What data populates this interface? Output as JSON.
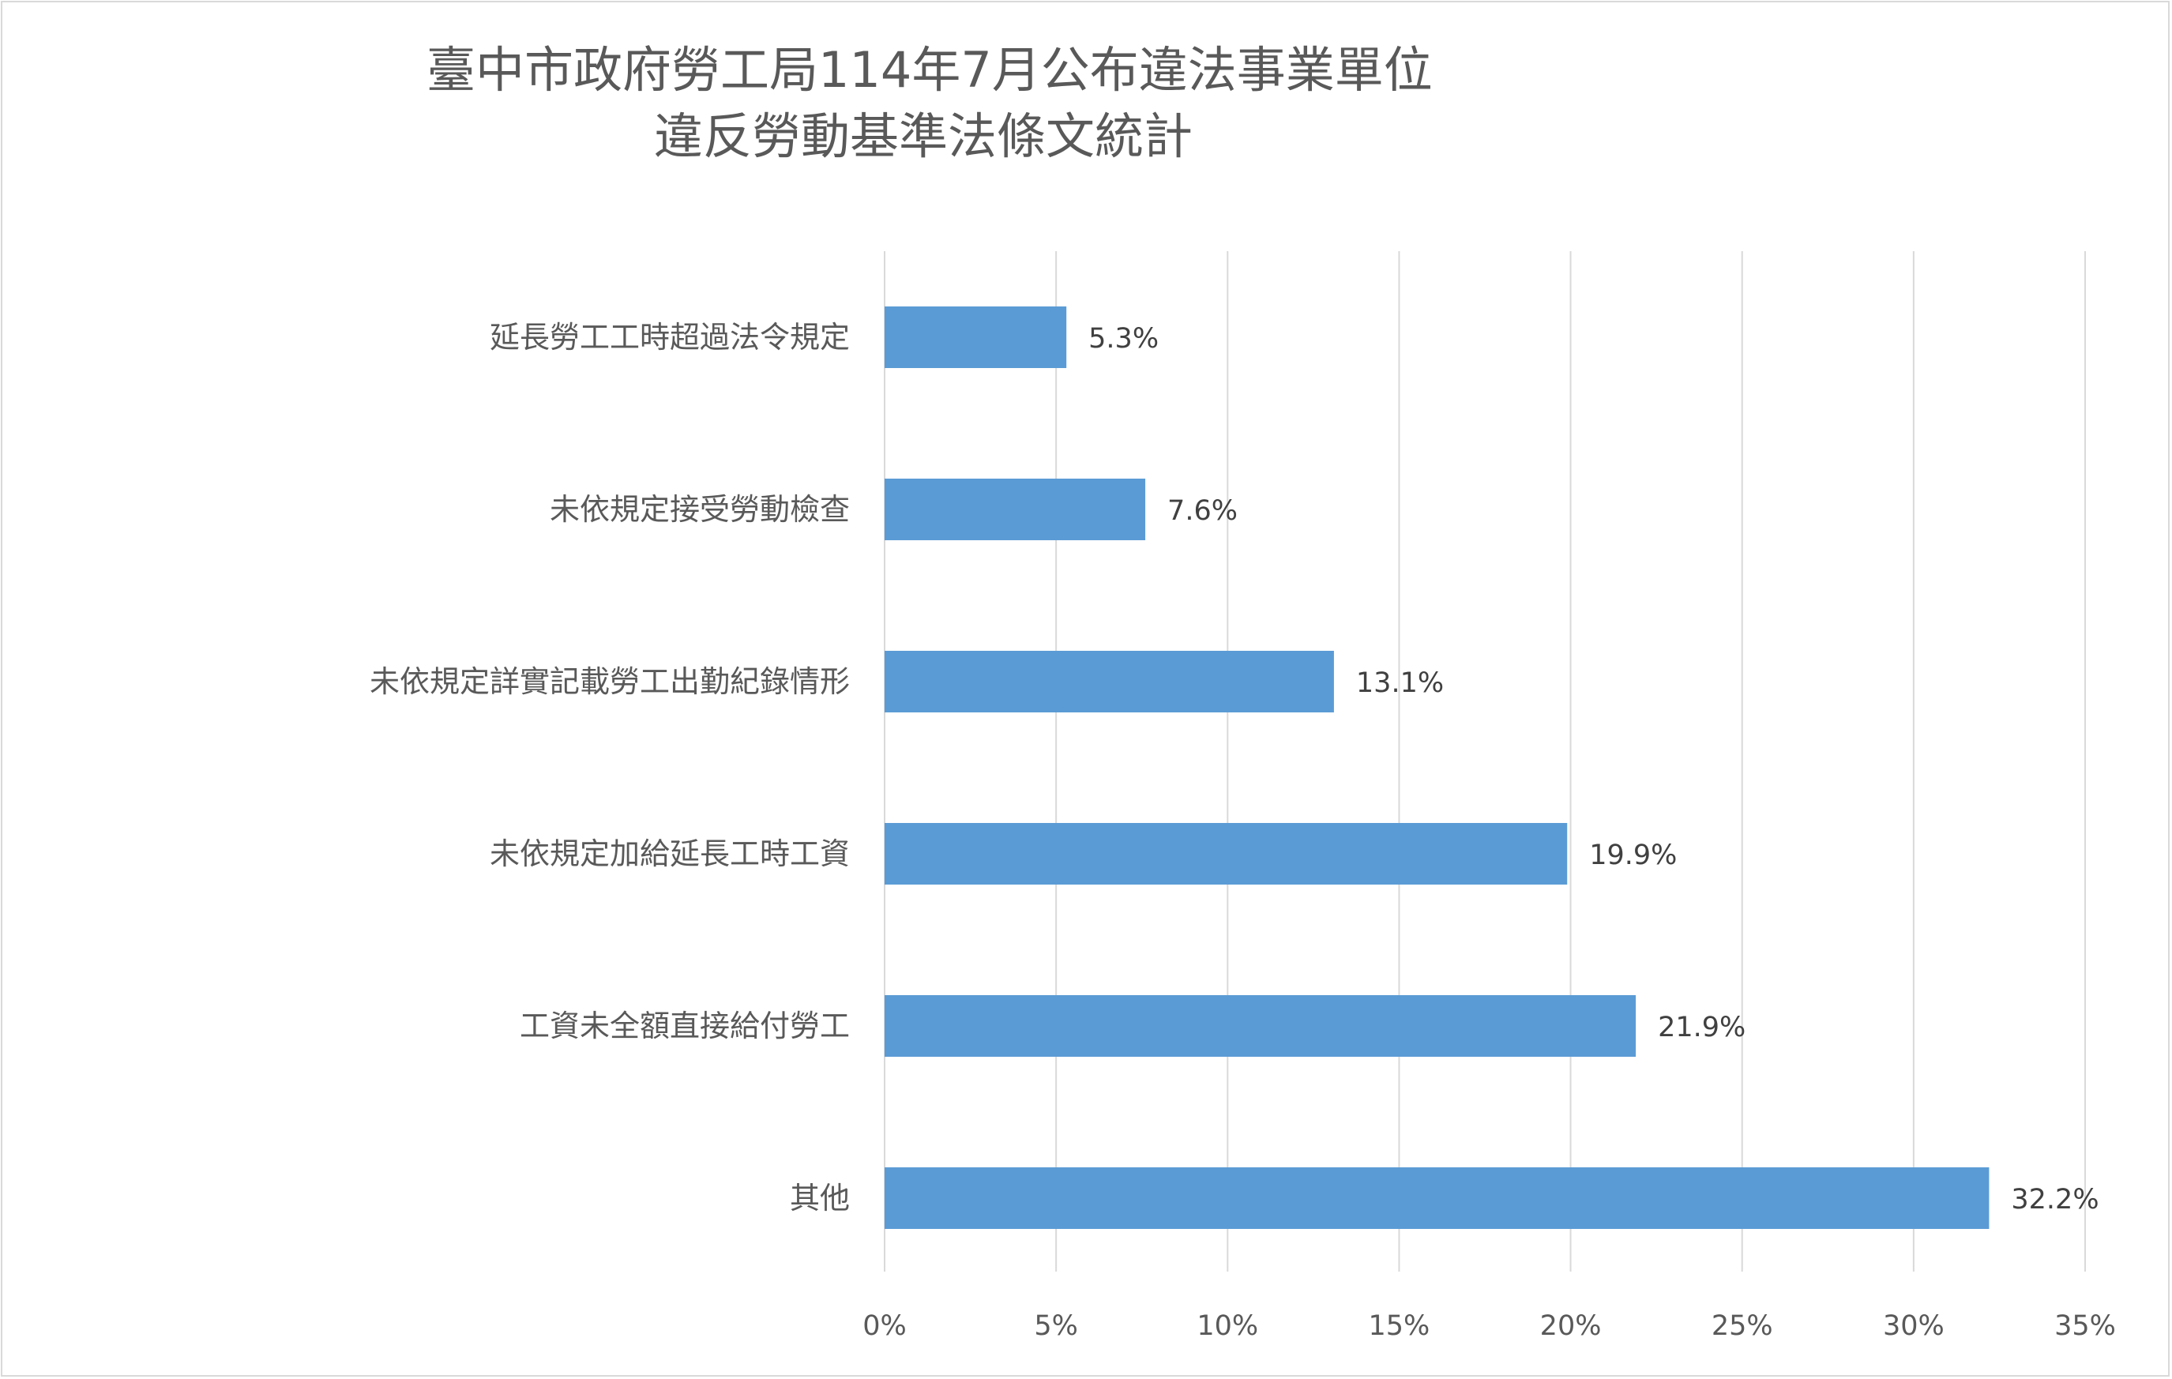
{
  "chart_data": {
    "type": "bar",
    "orientation": "horizontal",
    "title_lines": [
      "臺中市政府勞工局114年7月公布違法事業單位",
      "違反勞動基準法條文統計"
    ],
    "categories": [
      "延長勞工工時超過法令規定",
      "未依規定接受勞動檢查",
      "未依規定詳實記載勞工出勤紀錄情形",
      "未依規定加給延長工時工資",
      "工資未全額直接給付勞工",
      "其他"
    ],
    "values": [
      5.3,
      7.6,
      13.1,
      19.9,
      21.9,
      32.2
    ],
    "value_labels": [
      "5.3%",
      "7.6%",
      "13.1%",
      "19.9%",
      "21.9%",
      "32.2%"
    ],
    "xlim": [
      0,
      35
    ],
    "xticks": [
      0,
      5,
      10,
      15,
      20,
      25,
      30,
      35
    ],
    "xtick_labels": [
      "0%",
      "5%",
      "10%",
      "15%",
      "20%",
      "25%",
      "30%",
      "35%"
    ],
    "grid": "vertical",
    "legend": "none",
    "colors": {
      "bar": "#5b9bd5",
      "grid": "#d9d9d9",
      "frame": "#d9d9d9",
      "title": "#595959",
      "category_text": "#595959",
      "value_text": "#404040"
    }
  }
}
